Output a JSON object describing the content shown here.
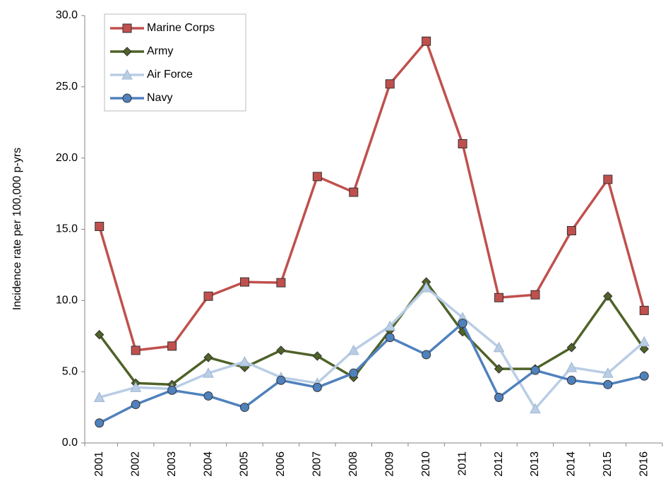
{
  "chart_data": {
    "type": "line",
    "y_label": "Incidence rate per 100,000 p-yrs",
    "categories": [
      "2001",
      "2002",
      "2003",
      "2004",
      "2005",
      "2006",
      "2007",
      "2008",
      "2009",
      "2010",
      "2011",
      "2012",
      "2013",
      "2014",
      "2015",
      "2016"
    ],
    "series": [
      {
        "name": "Marine Corps",
        "color": "#c0504d",
        "marker": "square",
        "values": [
          15.2,
          6.5,
          6.8,
          10.3,
          11.3,
          11.25,
          18.7,
          17.6,
          25.2,
          28.2,
          21.0,
          10.2,
          10.4,
          14.9,
          18.5,
          9.3
        ]
      },
      {
        "name": "Army",
        "color": "#4f6228",
        "marker": "diamond",
        "values": [
          7.6,
          4.2,
          4.1,
          6.0,
          5.3,
          6.5,
          6.1,
          4.6,
          7.9,
          11.3,
          7.8,
          5.2,
          5.2,
          6.7,
          10.3,
          6.6
        ]
      },
      {
        "name": "Air Force",
        "color": "#b9cde5",
        "marker": "triangle",
        "values": [
          3.2,
          3.9,
          3.8,
          4.9,
          5.7,
          4.6,
          4.2,
          6.5,
          8.2,
          10.9,
          8.8,
          6.7,
          2.4,
          5.3,
          4.9,
          7.1
        ]
      },
      {
        "name": "Navy",
        "color": "#4f81bd",
        "marker": "circle",
        "values": [
          1.4,
          2.7,
          3.7,
          3.3,
          2.5,
          4.4,
          3.9,
          4.9,
          7.4,
          6.2,
          8.4,
          3.2,
          5.1,
          4.4,
          4.1,
          4.7
        ]
      }
    ],
    "ylim": [
      0,
      30
    ],
    "yticks": [
      {
        "value": 0,
        "label": "0.0"
      },
      {
        "value": 5,
        "label": "5.0"
      },
      {
        "value": 10,
        "label": "10.0"
      },
      {
        "value": 15,
        "label": "15.0"
      },
      {
        "value": 20,
        "label": "20.0"
      },
      {
        "value": 25,
        "label": "25.0"
      },
      {
        "value": 30,
        "label": "30.0"
      }
    ],
    "grid": false,
    "legend": "upper-left"
  }
}
